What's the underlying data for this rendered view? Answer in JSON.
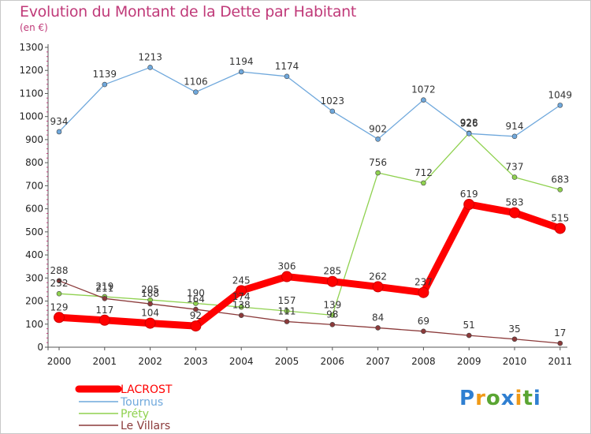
{
  "title": "Evolution du Montant de la Dette par Habitant",
  "subtitle": "(en €)",
  "logo_text": "Proxiti",
  "chart_data": {
    "type": "line",
    "x": [
      "2000",
      "2001",
      "2002",
      "2003",
      "2004",
      "2005",
      "2006",
      "2007",
      "2008",
      "2009",
      "2010",
      "2011"
    ],
    "ylim": [
      0,
      1300
    ],
    "yticks": [
      0,
      100,
      200,
      300,
      400,
      500,
      600,
      700,
      800,
      900,
      1000,
      1100,
      1200,
      1300
    ],
    "grid": false,
    "legend_position": "bottom-left",
    "series": [
      {
        "name": "LACROST",
        "color": "#ff0000",
        "values": [
          129,
          117,
          104,
          92,
          245,
          306,
          285,
          262,
          237,
          619,
          583,
          515
        ]
      },
      {
        "name": "Tournus",
        "color": "#6fa8dc",
        "values": [
          934,
          1139,
          1213,
          1106,
          1194,
          1174,
          1023,
          902,
          1072,
          926,
          914,
          1049
        ]
      },
      {
        "name": "Préty",
        "color": "#8fd14f",
        "values": [
          232,
          219,
          205,
          190,
          174,
          157,
          139,
          756,
          712,
          928,
          737,
          683
        ]
      },
      {
        "name": "Le Villars",
        "color": "#8b3a3a",
        "values": [
          288,
          211,
          188,
          164,
          138,
          111,
          98,
          84,
          69,
          51,
          35,
          17
        ]
      }
    ]
  }
}
